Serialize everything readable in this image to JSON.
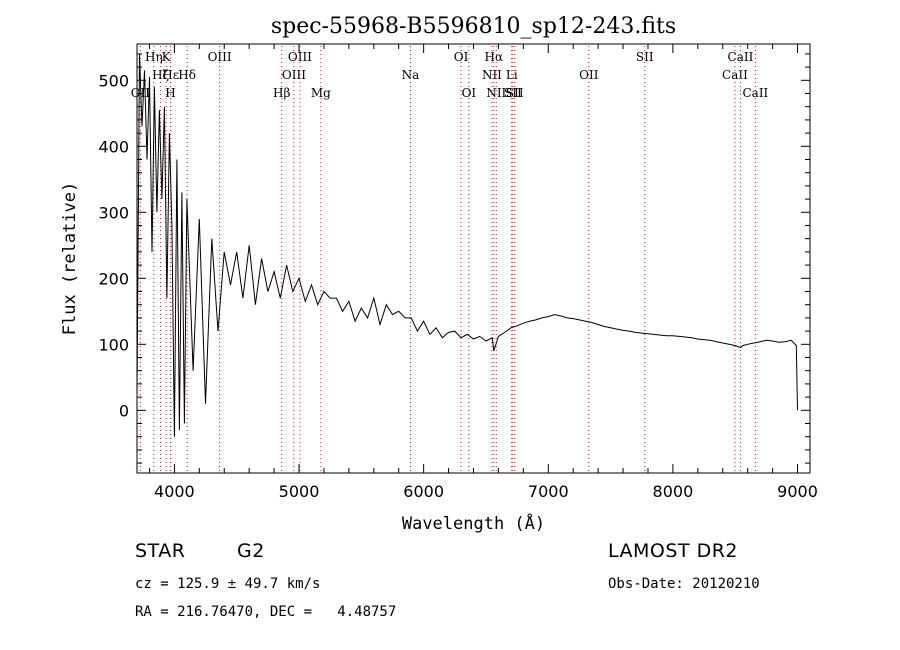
{
  "chart_data": {
    "type": "line",
    "title": "spec-55968-B5596810_sp12-243.fits",
    "xlabel": "Wavelength (Å)",
    "ylabel": "Flux (relative)",
    "xlim": [
      3700,
      9100
    ],
    "ylim": [
      -95,
      555
    ],
    "x_ticks": [
      4000,
      5000,
      6000,
      7000,
      8000,
      9000
    ],
    "y_ticks": [
      0,
      100,
      200,
      300,
      400,
      500
    ],
    "grid": false,
    "series": [
      {
        "color": "#000000",
        "x": [
          3700,
          3720,
          3740,
          3760,
          3780,
          3800,
          3820,
          3840,
          3860,
          3880,
          3900,
          3920,
          3940,
          3960,
          3980,
          4000,
          4020,
          4040,
          4060,
          4080,
          4100,
          4150,
          4200,
          4250,
          4300,
          4350,
          4400,
          4450,
          4500,
          4550,
          4600,
          4650,
          4700,
          4750,
          4800,
          4850,
          4900,
          4950,
          5000,
          5050,
          5100,
          5150,
          5200,
          5250,
          5300,
          5350,
          5400,
          5450,
          5500,
          5550,
          5600,
          5650,
          5700,
          5750,
          5800,
          5850,
          5900,
          5950,
          6000,
          6050,
          6100,
          6150,
          6200,
          6250,
          6300,
          6350,
          6400,
          6450,
          6500,
          6550,
          6563,
          6580,
          6600,
          6650,
          6700,
          6750,
          6800,
          6850,
          6900,
          6950,
          7000,
          7050,
          7100,
          7150,
          7200,
          7250,
          7300,
          7350,
          7400,
          7450,
          7500,
          7550,
          7600,
          7650,
          7700,
          7750,
          7800,
          7850,
          7900,
          7950,
          8000,
          8050,
          8100,
          8150,
          8200,
          8250,
          8300,
          8350,
          8400,
          8450,
          8500,
          8542,
          8560,
          8600,
          8650,
          8700,
          8750,
          8800,
          8850,
          8900,
          8950,
          8990,
          9000
        ],
        "y": [
          20,
          540,
          430,
          515,
          380,
          505,
          240,
          490,
          300,
          455,
          320,
          460,
          170,
          420,
          280,
          -40,
          380,
          -30,
          330,
          -20,
          320,
          60,
          290,
          10,
          260,
          120,
          240,
          190,
          240,
          170,
          250,
          160,
          230,
          180,
          210,
          170,
          220,
          180,
          200,
          165,
          190,
          160,
          180,
          170,
          170,
          150,
          165,
          135,
          155,
          140,
          170,
          130,
          160,
          145,
          150,
          140,
          140,
          120,
          135,
          115,
          125,
          110,
          118,
          120,
          110,
          115,
          108,
          112,
          105,
          110,
          90,
          100,
          112,
          118,
          125,
          128,
          132,
          135,
          137,
          140,
          142,
          145,
          143,
          140,
          139,
          137,
          135,
          133,
          130,
          127,
          125,
          123,
          121,
          120,
          118,
          117,
          116,
          115,
          114,
          113,
          113,
          112,
          111,
          110,
          108,
          107,
          106,
          104,
          102,
          100,
          98,
          95,
          98,
          100,
          102,
          104,
          106,
          105,
          103,
          104,
          106,
          98,
          0
        ]
      }
    ],
    "line_markers": [
      {
        "label": "OII",
        "x": 3727,
        "row": 3
      },
      {
        "label": "Hη",
        "x": 3835,
        "row": 1
      },
      {
        "label": "Hζ",
        "x": 3889,
        "row": 2
      },
      {
        "label": "K",
        "x": 3934,
        "row": 1
      },
      {
        "label": "H",
        "x": 3969,
        "row": 3
      },
      {
        "label": "Hε",
        "x": 3970,
        "row": 2
      },
      {
        "label": "Hδ",
        "x": 4102,
        "row": 2
      },
      {
        "label": "OIII",
        "x": 4363,
        "row": 1
      },
      {
        "label": "Hβ",
        "x": 4861,
        "row": 3
      },
      {
        "label": "OIII",
        "x": 4959,
        "row": 2
      },
      {
        "label": "OIII",
        "x": 5007,
        "row": 1
      },
      {
        "label": "Mg",
        "x": 5175,
        "row": 3
      },
      {
        "label": "Na",
        "x": 5894,
        "row": 2
      },
      {
        "label": "OI",
        "x": 6300,
        "row": 1
      },
      {
        "label": "OI",
        "x": 6363,
        "row": 3
      },
      {
        "label": "NII",
        "x": 6548,
        "row": 2
      },
      {
        "label": "Hα",
        "x": 6563,
        "row": 1
      },
      {
        "label": "NII",
        "x": 6583,
        "row": 3
      },
      {
        "label": "Li",
        "x": 6707,
        "row": 2
      },
      {
        "label": "SII",
        "x": 6716,
        "row": 3
      },
      {
        "label": "SII",
        "x": 6731,
        "row": 3
      },
      {
        "label": "OII",
        "x": 7325,
        "row": 2
      },
      {
        "label": "SII",
        "x": 7774,
        "row": 1
      },
      {
        "label": "CaII",
        "x": 8498,
        "row": 2
      },
      {
        "label": "CaII",
        "x": 8542,
        "row": 1
      },
      {
        "label": "CaII",
        "x": 8662,
        "row": 3
      }
    ]
  },
  "info": {
    "class_label": "STAR",
    "subclass": "G2",
    "survey": "LAMOST DR2",
    "redshift": "cz = 125.9 ± 49.7 km/s",
    "obs_date": "Obs-Date: 20120210",
    "coords": "RA = 216.76470, DEC =   4.48757"
  }
}
